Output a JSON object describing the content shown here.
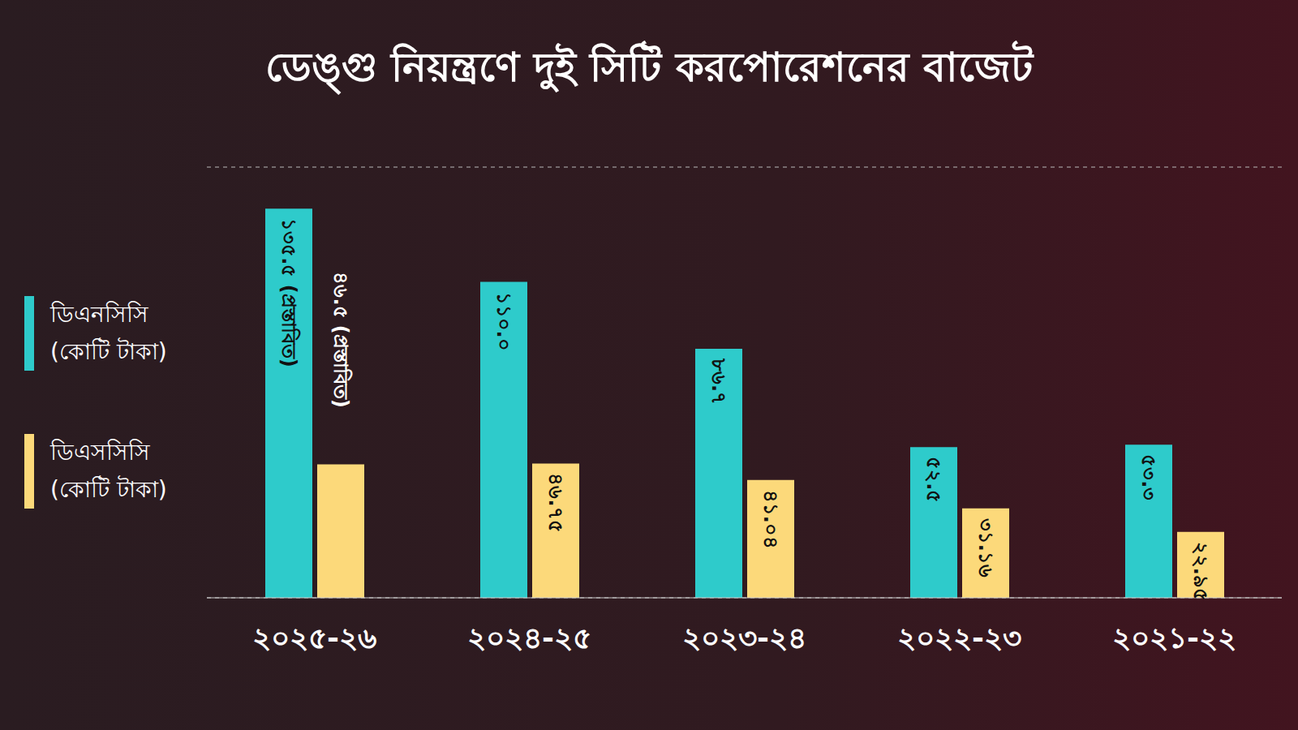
{
  "chart_data": {
    "type": "bar",
    "title": "ডেঙ্গু নিয়ন্ত্রণে দুই সিটি করপোরেশনের বাজেট",
    "categories": [
      "২০২৫-২৬",
      "২০২৪-২৫",
      "২০২৩-২৪",
      "২০২২-২৩",
      "২০২১-২২"
    ],
    "series": [
      {
        "name": "ডিএনসিসি (কোটি টাকা)",
        "color": "#2ecbcb",
        "values": [
          135.5,
          110.0,
          86.7,
          52.5,
          53.3
        ],
        "value_labels": [
          "১৩৫.৫ (প্রস্তাবিত)",
          "১১০.০",
          "৮৬.৭",
          "৫২.৫",
          "৫৩.৩"
        ]
      },
      {
        "name": "ডিএসসিসি (কোটি টাকা)",
        "color": "#fcd97a",
        "values": [
          46.5,
          46.75,
          41.04,
          31.16,
          22.95
        ],
        "value_labels": [
          "৪৬.৫ (প্রস্তাবিত)",
          "৪৬.৭৫",
          "৪১.০৪",
          "৩১.১৬",
          "২২.৯৫"
        ]
      }
    ],
    "ylim": [
      0,
      150
    ],
    "yticks": [
      0,
      30,
      60,
      90,
      120,
      150
    ],
    "grid": true,
    "legend": "left",
    "data_labels": true,
    "tick_labels": "x"
  }
}
